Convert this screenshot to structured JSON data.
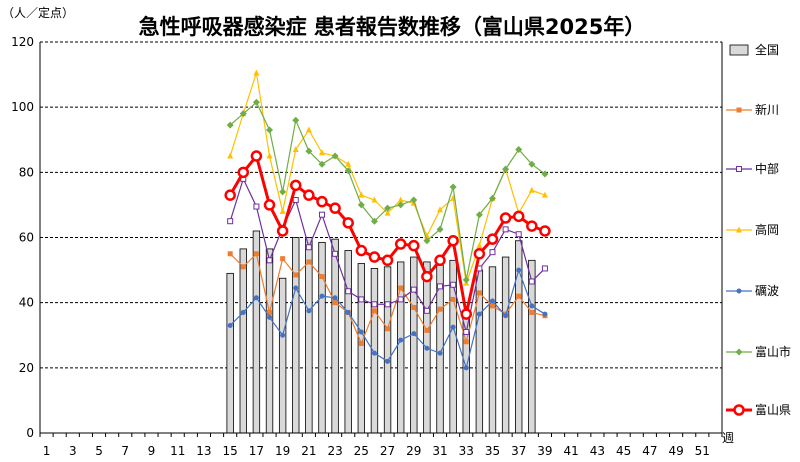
{
  "chart_data": {
    "type": "bar",
    "title": "急性呼吸器感染症 患者報告数推移（富山県2025年）",
    "ylabel": "（人／定点）",
    "xlabel": "週",
    "ylim": [
      0,
      120
    ],
    "yticks": [
      0,
      20,
      40,
      60,
      80,
      100,
      120
    ],
    "xticks": [
      "1",
      "3",
      "5",
      "7",
      "9",
      "11",
      "13",
      "15",
      "17",
      "19",
      "21",
      "23",
      "25",
      "27",
      "29",
      "31",
      "33",
      "35",
      "37",
      "39",
      "41",
      "43",
      "45",
      "47",
      "49",
      "51"
    ],
    "grid": "dashed horizontal",
    "legend_position": "right",
    "weeks": [
      15,
      16,
      17,
      18,
      19,
      20,
      21,
      22,
      23,
      24,
      25,
      26,
      27,
      28,
      29,
      30,
      31,
      32,
      33,
      34,
      35,
      36,
      37,
      38,
      39
    ],
    "series": [
      {
        "name": "全国",
        "kind": "bar",
        "color": "#d9d9d9",
        "values": [
          49,
          56.5,
          62,
          56.5,
          47.5,
          60,
          60,
          58.5,
          59.5,
          56,
          52,
          50.5,
          51,
          52.5,
          54,
          52.5,
          51.5,
          53,
          37,
          50,
          51,
          54,
          59,
          53,
          null
        ]
      },
      {
        "name": "新川",
        "kind": "line",
        "color": "#ed7d31",
        "marker": "square",
        "values": [
          55,
          51,
          55,
          37,
          53.5,
          48.5,
          52.5,
          48,
          40,
          37,
          27.5,
          37.5,
          32,
          44.5,
          38.5,
          31.5,
          38,
          41,
          28,
          43,
          39,
          36.5,
          42,
          37,
          36
        ]
      },
      {
        "name": "中部",
        "kind": "line",
        "color": "#7030a0",
        "marker": "square-open",
        "values": [
          65,
          78,
          69.5,
          53,
          63,
          71.5,
          57,
          67,
          55,
          43.5,
          41,
          39.5,
          39.5,
          41,
          44,
          37.5,
          45,
          45.5,
          31,
          50.5,
          55.5,
          62.5,
          61,
          46.5,
          50.5
        ]
      },
      {
        "name": "高岡",
        "kind": "line",
        "color": "#ffc000",
        "marker": "triangle",
        "values": [
          85,
          98,
          110.5,
          85,
          68,
          87,
          93,
          86,
          85,
          82.5,
          73,
          71.5,
          67.5,
          71.5,
          70.5,
          60.5,
          68.5,
          72,
          46,
          57.5,
          72,
          81,
          67.5,
          74.5,
          73
        ]
      },
      {
        "name": "礪波",
        "kind": "line",
        "color": "#4472c4",
        "marker": "circle",
        "values": [
          33,
          37,
          41.5,
          35.5,
          30,
          44.5,
          37.5,
          42,
          41.5,
          37,
          31,
          24.5,
          22,
          28.5,
          30.5,
          26,
          24.5,
          32.5,
          20,
          36.5,
          40.5,
          36,
          50,
          39,
          36.5
        ]
      },
      {
        "name": "富山市",
        "kind": "line",
        "color": "#70ad47",
        "marker": "diamond",
        "values": [
          94.5,
          98,
          101.5,
          93,
          74,
          96,
          86.5,
          82.5,
          85,
          80.5,
          70,
          65,
          69,
          70,
          71.5,
          59,
          62.5,
          75.5,
          47,
          67,
          72,
          81,
          87,
          82.5,
          79.5
        ]
      },
      {
        "name": "富山県",
        "kind": "line",
        "color": "#ff0000",
        "marker": "circle-open",
        "bold": true,
        "values": [
          73,
          80,
          85,
          70,
          62,
          76,
          73,
          71,
          69,
          64.5,
          56,
          54,
          53,
          58,
          57.5,
          48,
          53,
          59,
          36.5,
          55,
          59.5,
          66,
          66.5,
          63.5,
          62
        ]
      }
    ]
  }
}
